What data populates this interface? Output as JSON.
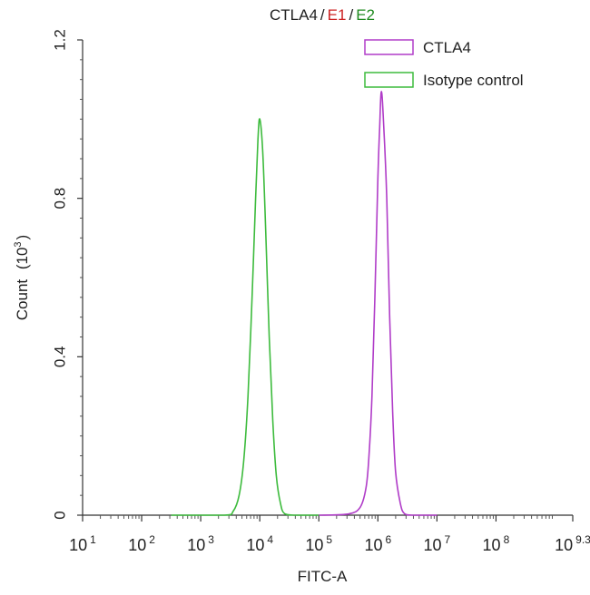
{
  "chart_data": {
    "type": "line",
    "title_parts": [
      {
        "text": "CTLA4",
        "color": "#222222"
      },
      {
        "text": "/",
        "color": "#222222"
      },
      {
        "text": "E1",
        "color": "#cc2222"
      },
      {
        "text": "/",
        "color": "#222222"
      },
      {
        "text": "E2",
        "color": "#1e8a1e"
      }
    ],
    "xlabel": "FITC-A",
    "ylabel_main": "Count",
    "ylabel_unit_prefix": "(10",
    "ylabel_unit_exp": "3",
    "ylabel_unit_suffix": ")",
    "x_scale": "log10",
    "xlim": [
      1,
      9.3
    ],
    "ylim": [
      0,
      1.2
    ],
    "x_ticks": [
      {
        "base": "10",
        "exp": "1",
        "pos": 1
      },
      {
        "base": "10",
        "exp": "2",
        "pos": 2
      },
      {
        "base": "10",
        "exp": "3",
        "pos": 3
      },
      {
        "base": "10",
        "exp": "4",
        "pos": 4
      },
      {
        "base": "10",
        "exp": "5",
        "pos": 5
      },
      {
        "base": "10",
        "exp": "6",
        "pos": 6
      },
      {
        "base": "10",
        "exp": "7",
        "pos": 7
      },
      {
        "base": "10",
        "exp": "8",
        "pos": 8
      },
      {
        "base": "10",
        "exp": "9.3",
        "pos": 9.3
      }
    ],
    "y_ticks": [
      {
        "label": "0",
        "value": 0
      },
      {
        "label": "0.4",
        "value": 0.4
      },
      {
        "label": "0.8",
        "value": 0.8
      },
      {
        "label": "1.2",
        "value": 1.2
      }
    ],
    "legend_position": "top-right",
    "grid": false,
    "series": [
      {
        "name": "CTLA4",
        "color": "#b03cc8",
        "x": [
          5.0,
          5.5,
          5.7,
          5.8,
          5.85,
          5.9,
          5.95,
          6.0,
          6.03,
          6.06,
          6.1,
          6.15,
          6.2,
          6.25,
          6.3,
          6.38,
          6.45,
          6.6,
          7.0
        ],
        "y": [
          0,
          0.003,
          0.02,
          0.07,
          0.15,
          0.3,
          0.55,
          0.85,
          0.98,
          1.07,
          0.98,
          0.8,
          0.5,
          0.26,
          0.11,
          0.03,
          0.004,
          0,
          0
        ]
      },
      {
        "name": "Isotype control",
        "color": "#3dbb3d",
        "x": [
          2.5,
          3.4,
          3.55,
          3.65,
          3.73,
          3.8,
          3.87,
          3.93,
          3.97,
          4.0,
          4.05,
          4.1,
          4.16,
          4.22,
          4.28,
          4.35,
          4.42,
          4.6,
          5.0
        ],
        "y": [
          0,
          0,
          0.01,
          0.05,
          0.14,
          0.3,
          0.55,
          0.8,
          0.95,
          1.0,
          0.92,
          0.72,
          0.45,
          0.24,
          0.1,
          0.03,
          0.004,
          0,
          0
        ]
      }
    ]
  }
}
